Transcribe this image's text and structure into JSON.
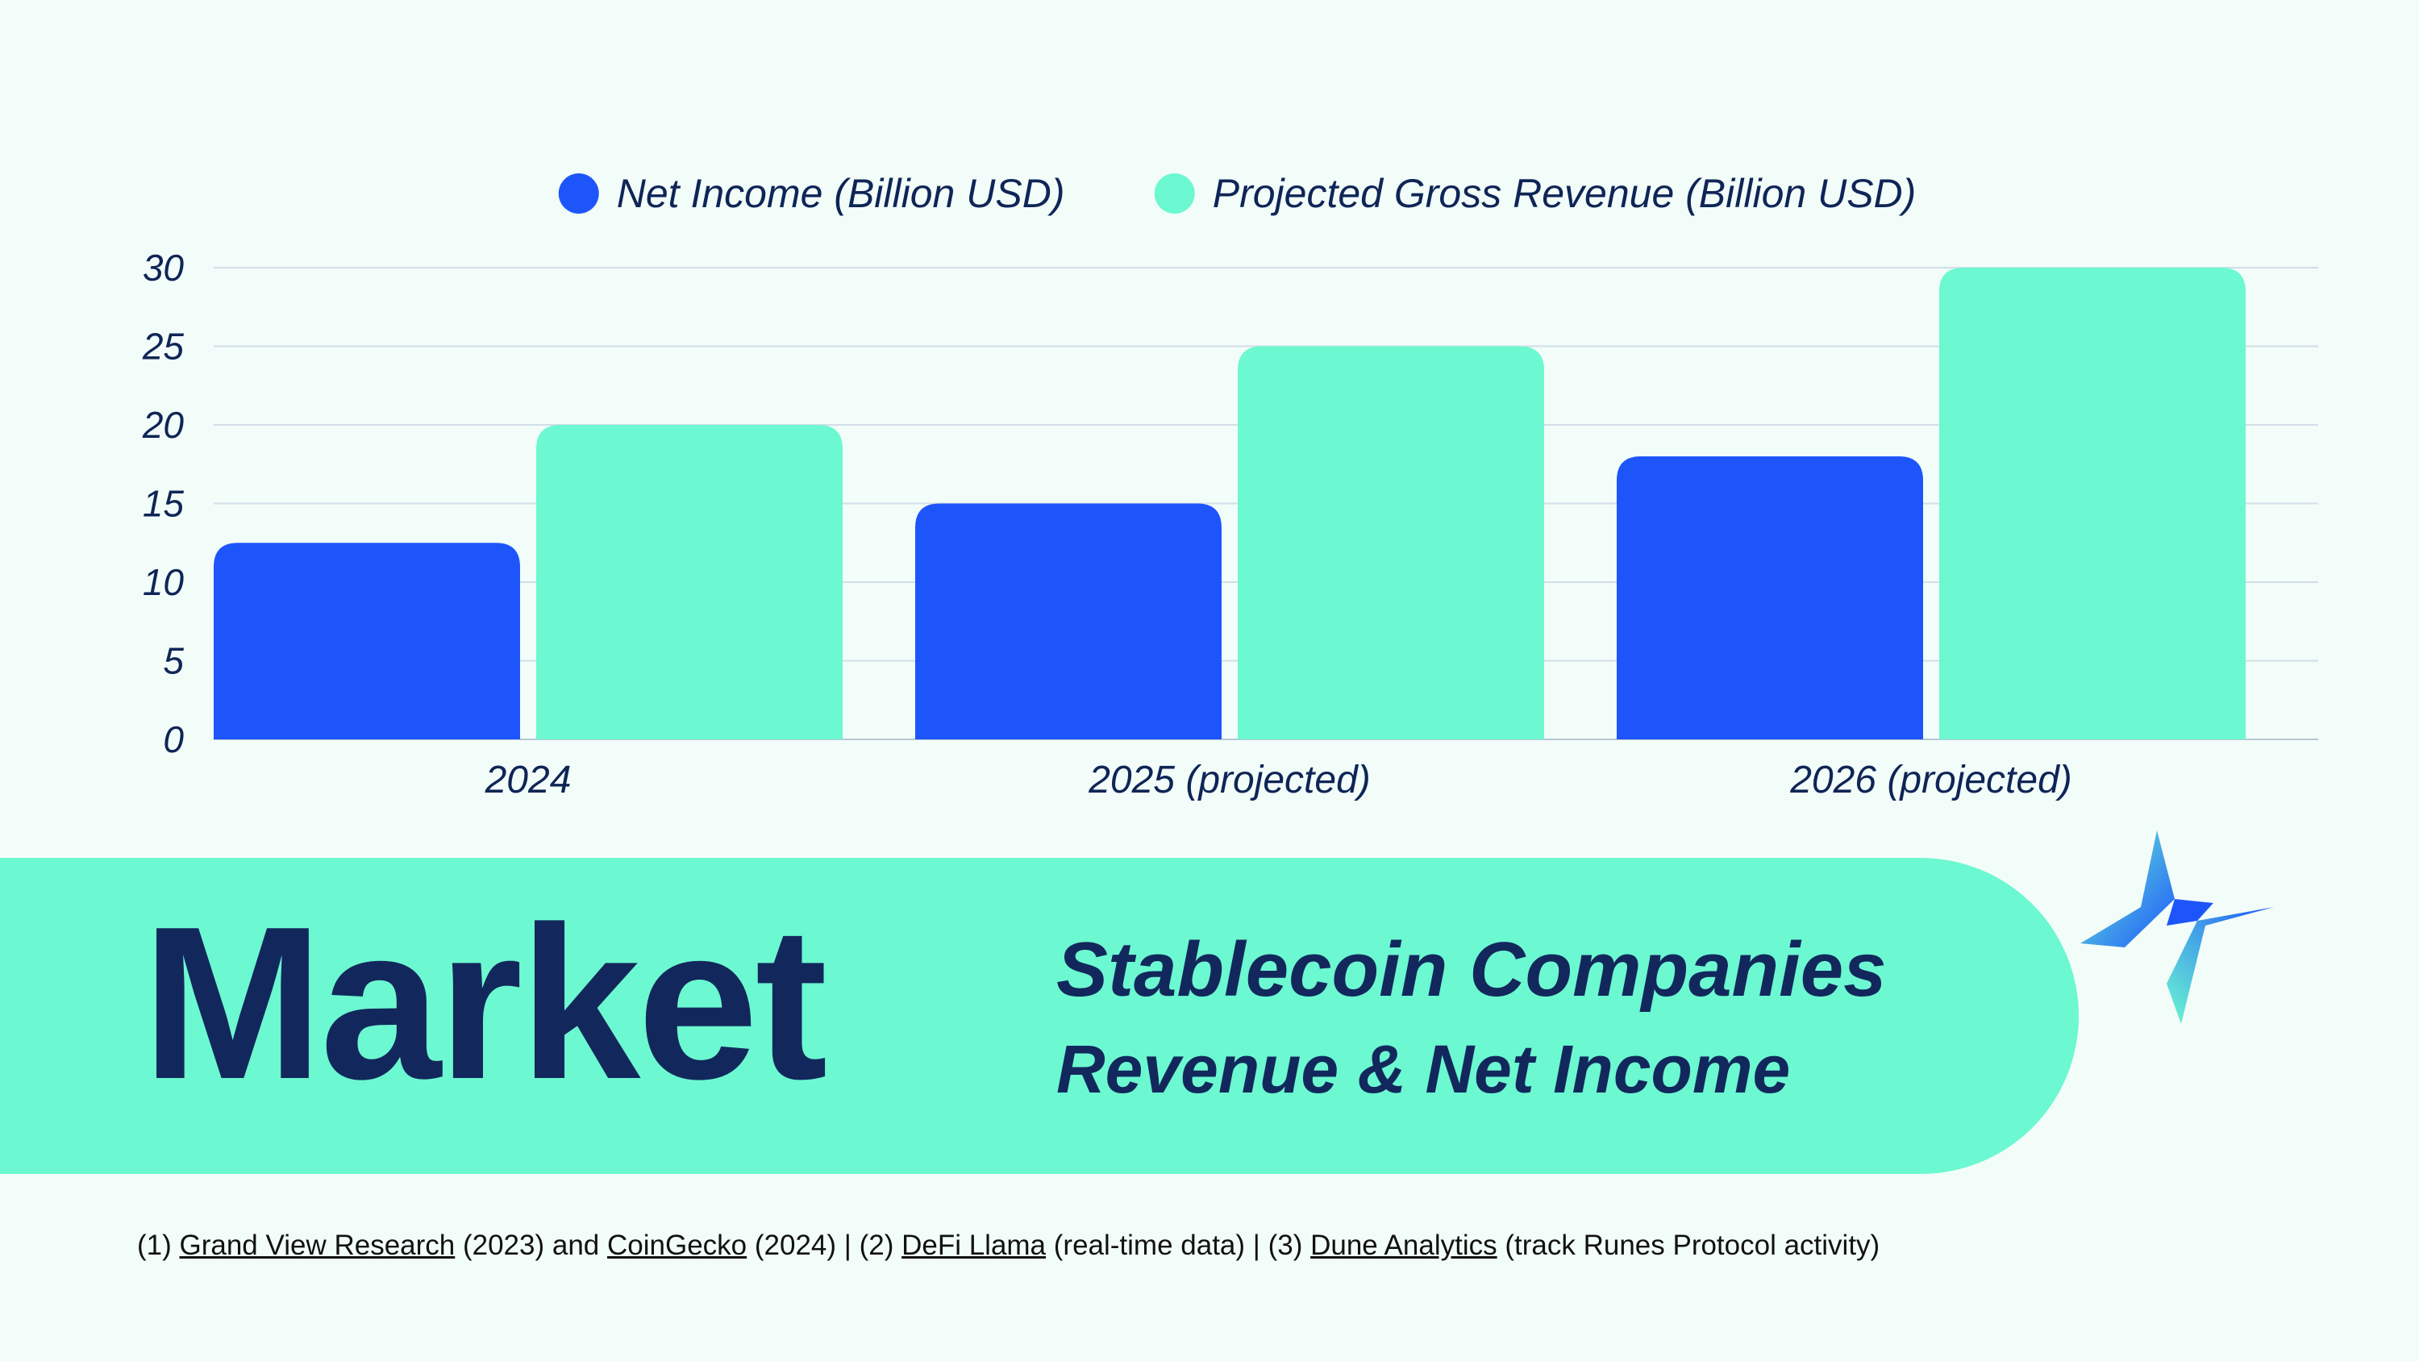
{
  "chart_data": {
    "type": "bar",
    "categories": [
      "2024",
      "2025 (projected)",
      "2026 (projected)"
    ],
    "series": [
      {
        "name": "Net Income (Billion USD)",
        "values": [
          12.5,
          15,
          18
        ],
        "color": "#1e55fb"
      },
      {
        "name": "Projected Gross Revenue (Billion USD)",
        "values": [
          20,
          25,
          30
        ],
        "color": "#6cf8d1"
      }
    ],
    "yticks": [
      "0",
      "5",
      "10",
      "15",
      "20",
      "25",
      "30"
    ],
    "ylim": [
      0,
      30
    ],
    "grid": true,
    "legend_position": "top-center"
  },
  "banner": {
    "title": "Market",
    "subtitle": "Stablecoin Companies",
    "subsubtitle": "Revenue & Net Income",
    "color": "#6cf8d1"
  },
  "logo": {
    "icon": "sparkle-star-logo-icon"
  },
  "footnote": {
    "p1": "(1) ",
    "link1": "Grand View Research",
    "p2": " (2023) and ",
    "link2": "CoinGecko",
    "p3": " (2024) | (2) ",
    "link3": "DeFi Llama",
    "p4": " (real-time data) | (3) ",
    "link4": "Dune Analytics",
    "p5": " (track Runes Protocol activity)"
  }
}
